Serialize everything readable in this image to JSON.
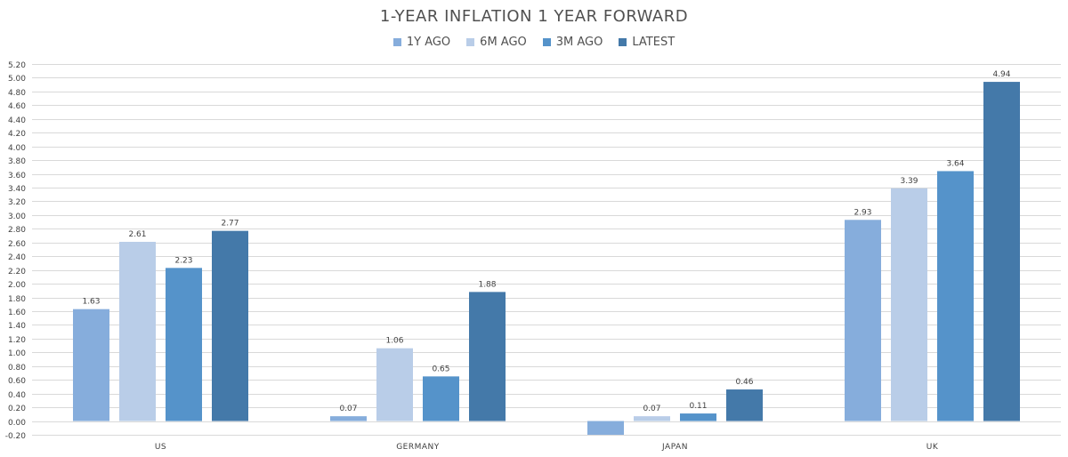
{
  "chart_data": {
    "type": "bar",
    "title": "1-YEAR INFLATION 1 YEAR FORWARD",
    "categories": [
      "US",
      "GERMANY",
      "JAPAN",
      "UK"
    ],
    "series": [
      {
        "name": "1Y AGO",
        "color": "#86ADDC",
        "values": [
          1.63,
          0.07,
          -0.2,
          2.93
        ],
        "labels": [
          "1.63",
          "0.07",
          "",
          "2.93"
        ]
      },
      {
        "name": "6M AGO",
        "color": "#B9CDE8",
        "values": [
          2.61,
          1.06,
          0.07,
          3.39
        ],
        "labels": [
          "2.61",
          "1.06",
          "0.07",
          "3.39"
        ]
      },
      {
        "name": "3M AGO",
        "color": "#5593CA",
        "values": [
          2.23,
          0.65,
          0.11,
          3.64
        ],
        "labels": [
          "2.23",
          "0.65",
          "0.11",
          "3.64"
        ]
      },
      {
        "name": "LATEST",
        "color": "#4479A9",
        "values": [
          2.77,
          1.88,
          0.46,
          4.94
        ],
        "labels": [
          "2.77",
          "1.88",
          "0.46",
          "4.94"
        ]
      }
    ],
    "xlabel": "",
    "ylabel": "",
    "ylim": [
      -0.2,
      5.2
    ],
    "ytick_step": 0.2,
    "ytick_decimals": 2,
    "grid": true,
    "legend_position": "top-center",
    "gridline_color": "#D9D9D9"
  }
}
